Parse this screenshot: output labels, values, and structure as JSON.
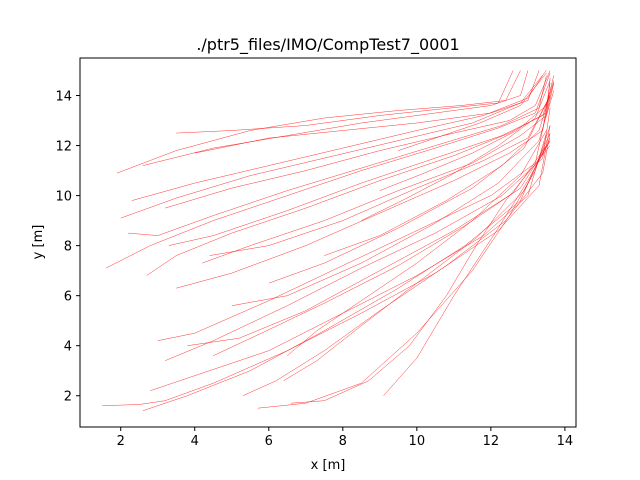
{
  "chart_data": {
    "type": "line",
    "title": "./ptr5_files/IMO/CompTest7_0001",
    "xlabel": "x [m]",
    "ylabel": "y [m]",
    "xlim": [
      0.9,
      14.3
    ],
    "ylim": [
      0.75,
      15.5
    ],
    "xticks": [
      2,
      4,
      6,
      8,
      10,
      12,
      14
    ],
    "yticks": [
      2,
      4,
      6,
      8,
      10,
      12,
      14
    ],
    "grid": false,
    "line_color": "#ff0000",
    "series": [
      {
        "x": [
          1.9,
          3.5,
          5.5,
          7.5,
          9.5,
          11.2,
          12.4,
          12.8
        ],
        "y": [
          10.9,
          11.8,
          12.6,
          13.1,
          13.4,
          13.6,
          13.8,
          15.0
        ]
      },
      {
        "x": [
          2.6,
          4.5,
          6.5,
          8.5,
          10.5,
          12.0,
          12.8,
          13.0
        ],
        "y": [
          11.2,
          11.9,
          12.4,
          12.9,
          13.3,
          13.6,
          14.0,
          15.0
        ]
      },
      {
        "x": [
          3.5,
          5.0,
          7.0,
          9.0,
          10.9,
          12.2,
          12.6
        ],
        "y": [
          12.5,
          12.6,
          12.8,
          13.2,
          13.5,
          13.7,
          15.0
        ]
      },
      {
        "x": [
          4.0,
          6.0,
          8.0,
          10.0,
          12.0,
          13.0,
          13.3
        ],
        "y": [
          11.7,
          12.3,
          12.6,
          12.9,
          13.3,
          13.8,
          15.0
        ]
      },
      {
        "x": [
          2.0,
          3.5,
          5.5,
          7.5,
          9.5,
          11.5,
          12.8,
          13.5
        ],
        "y": [
          9.1,
          9.9,
          10.8,
          11.5,
          12.2,
          12.9,
          13.7,
          15.0
        ]
      },
      {
        "x": [
          2.3,
          4.0,
          6.0,
          8.0,
          10.0,
          11.8,
          13.0,
          13.4
        ],
        "y": [
          9.8,
          10.5,
          11.2,
          11.9,
          12.6,
          13.2,
          13.9,
          14.8
        ]
      },
      {
        "x": [
          3.2,
          5.0,
          7.0,
          9.0,
          11.0,
          12.5,
          13.2,
          13.6
        ],
        "y": [
          9.5,
          10.3,
          11.0,
          11.8,
          12.5,
          13.0,
          13.6,
          15.0
        ]
      },
      {
        "x": [
          2.2,
          3.0,
          4.5,
          6.5,
          8.5,
          10.5,
          12.3,
          13.3,
          13.5
        ],
        "y": [
          8.5,
          8.4,
          9.2,
          10.2,
          11.1,
          12.0,
          12.8,
          13.5,
          14.8
        ]
      },
      {
        "x": [
          1.6,
          2.8,
          4.5,
          6.5,
          8.5,
          10.5,
          12.2,
          13.2,
          13.6
        ],
        "y": [
          7.1,
          8.0,
          9.0,
          10.0,
          11.0,
          11.9,
          12.7,
          13.3,
          14.9
        ]
      },
      {
        "x": [
          2.7,
          3.5,
          5.0,
          7.0,
          9.0,
          11.0,
          12.5,
          13.5,
          13.6
        ],
        "y": [
          6.8,
          7.6,
          8.5,
          9.5,
          10.6,
          11.6,
          12.5,
          13.3,
          14.7
        ]
      },
      {
        "x": [
          3.3,
          4.5,
          6.5,
          8.5,
          10.5,
          12.3,
          13.4,
          13.7
        ],
        "y": [
          8.0,
          8.4,
          9.4,
          10.5,
          11.5,
          12.4,
          13.2,
          14.6
        ]
      },
      {
        "x": [
          4.2,
          5.5,
          7.5,
          9.5,
          11.5,
          12.8,
          13.5,
          13.7
        ],
        "y": [
          7.3,
          8.0,
          9.0,
          10.2,
          11.3,
          12.4,
          13.2,
          14.5
        ]
      },
      {
        "x": [
          3.5,
          5.0,
          7.0,
          9.0,
          11.0,
          12.5,
          13.4,
          13.6
        ],
        "y": [
          6.3,
          6.9,
          8.0,
          9.3,
          10.6,
          11.7,
          12.6,
          14.5
        ]
      },
      {
        "x": [
          4.4,
          6.0,
          8.0,
          10.0,
          11.8,
          13.0,
          13.6
        ],
        "y": [
          7.6,
          8.0,
          9.0,
          10.3,
          11.4,
          12.3,
          14.0
        ]
      },
      {
        "x": [
          3.0,
          4.0,
          6.0,
          8.0,
          10.0,
          12.0,
          13.2,
          13.6
        ],
        "y": [
          4.2,
          4.5,
          5.8,
          7.2,
          8.6,
          10.0,
          11.3,
          14.0
        ]
      },
      {
        "x": [
          3.2,
          4.5,
          6.5,
          8.5,
          10.5,
          12.3,
          13.4,
          13.6
        ],
        "y": [
          3.4,
          4.2,
          5.6,
          7.1,
          8.5,
          10.0,
          11.5,
          13.5
        ]
      },
      {
        "x": [
          3.8,
          5.2,
          7.0,
          9.0,
          11.0,
          12.6,
          13.5
        ],
        "y": [
          4.0,
          4.3,
          5.4,
          7.0,
          8.6,
          10.1,
          12.0
        ]
      },
      {
        "x": [
          4.5,
          5.8,
          7.5,
          9.5,
          11.3,
          12.8,
          13.6
        ],
        "y": [
          3.6,
          4.5,
          5.7,
          7.2,
          8.8,
          10.3,
          12.2
        ]
      },
      {
        "x": [
          2.8,
          4.0,
          6.0,
          8.0,
          10.0,
          11.8,
          13.0,
          13.5
        ],
        "y": [
          2.2,
          2.8,
          3.8,
          5.3,
          6.8,
          8.4,
          10.0,
          12.5
        ]
      },
      {
        "x": [
          2.6,
          3.8,
          5.5,
          7.5,
          9.5,
          11.3,
          12.8,
          13.6
        ],
        "y": [
          1.4,
          2.0,
          3.0,
          4.6,
          6.3,
          8.0,
          9.8,
          12.5
        ]
      },
      {
        "x": [
          1.5,
          2.5,
          3.2,
          4.5,
          6.5,
          8.5,
          10.5,
          12.2,
          13.3,
          13.6
        ],
        "y": [
          1.6,
          1.65,
          1.8,
          2.5,
          3.8,
          5.3,
          6.9,
          8.6,
          10.4,
          12.8
        ]
      },
      {
        "x": [
          5.3,
          6.2,
          7.5,
          9.0,
          10.8,
          12.4,
          13.4,
          13.6
        ],
        "y": [
          2.0,
          2.6,
          3.8,
          5.4,
          7.2,
          9.0,
          10.9,
          12.5
        ]
      },
      {
        "x": [
          6.4,
          7.3,
          8.5,
          10.0,
          11.6,
          12.9,
          13.6
        ],
        "y": [
          2.6,
          3.4,
          4.8,
          6.5,
          8.3,
          10.2,
          12.3
        ]
      },
      {
        "x": [
          5.7,
          7.0,
          8.5,
          10.0,
          11.5,
          12.5,
          13.2,
          13.6
        ],
        "y": [
          1.5,
          1.7,
          2.5,
          4.5,
          7.0,
          9.2,
          11.0,
          12.8
        ]
      },
      {
        "x": [
          6.6,
          7.5,
          8.7,
          9.8,
          10.8,
          11.6,
          12.4,
          13.0,
          13.6
        ],
        "y": [
          1.7,
          1.8,
          2.6,
          4.0,
          6.0,
          8.0,
          9.8,
          10.9,
          12.0
        ]
      },
      {
        "x": [
          9.1,
          10.0,
          11.0,
          12.2,
          13.0,
          13.6
        ],
        "y": [
          2.0,
          3.5,
          6.0,
          8.7,
          10.6,
          12.2
        ]
      },
      {
        "x": [
          6.5,
          7.3,
          8.5,
          10.0,
          11.5,
          12.8,
          13.5
        ],
        "y": [
          3.6,
          4.6,
          5.8,
          7.3,
          9.0,
          10.8,
          12.6
        ]
      },
      {
        "x": [
          5.0,
          6.5,
          8.5,
          10.5,
          12.2,
          13.3,
          13.7
        ],
        "y": [
          5.6,
          6.0,
          7.3,
          8.9,
          10.5,
          12.2,
          14.2
        ]
      },
      {
        "x": [
          6.0,
          7.5,
          9.5,
          11.5,
          12.9,
          13.6
        ],
        "y": [
          6.5,
          7.3,
          8.7,
          10.3,
          11.9,
          14.0
        ]
      },
      {
        "x": [
          7.5,
          9.0,
          10.8,
          12.3,
          13.3,
          13.7
        ],
        "y": [
          7.6,
          8.4,
          9.8,
          11.2,
          12.6,
          14.5
        ]
      },
      {
        "x": [
          8.5,
          9.6,
          10.9,
          12.2,
          13.2,
          13.6
        ],
        "y": [
          9.0,
          9.8,
          10.8,
          12.0,
          13.1,
          14.6
        ]
      },
      {
        "x": [
          9.0,
          10.2,
          11.5,
          12.7,
          13.5,
          13.7
        ],
        "y": [
          10.2,
          10.9,
          11.7,
          12.6,
          13.6,
          14.8
        ]
      },
      {
        "x": [
          9.5,
          10.5,
          11.7,
          12.8,
          13.5
        ],
        "y": [
          11.8,
          12.3,
          12.9,
          13.6,
          14.9
        ]
      }
    ]
  }
}
